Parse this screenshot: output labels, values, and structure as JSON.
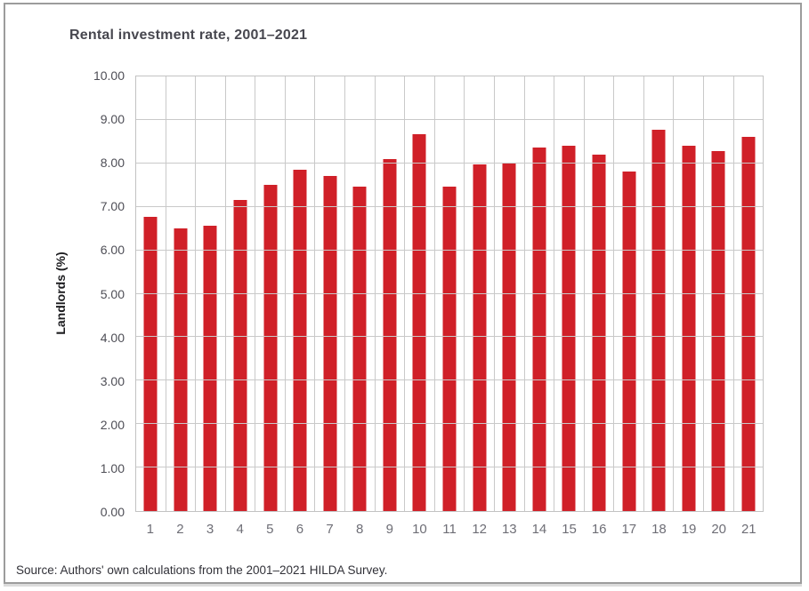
{
  "chart_data": {
    "type": "bar",
    "title": "Rental investment rate, 2001–2021",
    "xlabel": "",
    "ylabel": "Landlords (%)",
    "categories": [
      "1",
      "2",
      "3",
      "4",
      "5",
      "6",
      "7",
      "8",
      "9",
      "10",
      "11",
      "12",
      "13",
      "14",
      "15",
      "16",
      "17",
      "18",
      "19",
      "20",
      "21"
    ],
    "values": [
      6.76,
      6.5,
      6.56,
      7.16,
      7.5,
      7.85,
      7.71,
      7.47,
      8.1,
      8.68,
      7.46,
      7.97,
      8.0,
      8.37,
      8.41,
      8.21,
      7.82,
      8.78,
      8.4,
      8.29,
      8.61
    ],
    "ylim": [
      0,
      10
    ],
    "ytick_labels_top_to_bottom": [
      "10.00",
      "9.00",
      "8.00",
      "7.00",
      "6.00",
      "5.00",
      "4.00",
      "3.00",
      "2.00",
      "1.00",
      "0.00"
    ],
    "grid": true,
    "legend_position": "none",
    "colors": {
      "bar": "#D02028",
      "grid": "#C9C9C9",
      "plot_border": "#C2C2C2",
      "title_text": "#47474F",
      "ytick_text": "#4E4E56",
      "xtick_text": "#6E6E76",
      "axis_title_text": "#1C1C1F",
      "source_text": "#313138",
      "frame_border": "#9C9C9C"
    }
  },
  "footer": {
    "source": "Source: Authors' own calculations from the 2001–2021 HILDA Survey."
  }
}
